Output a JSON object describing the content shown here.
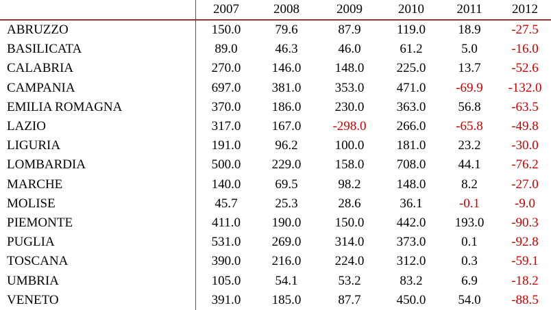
{
  "table": {
    "header": {
      "label": "",
      "years": [
        "2007",
        "2008",
        "2009",
        "2010",
        "2011",
        "2012"
      ]
    },
    "rows": [
      {
        "region": "ABRUZZO",
        "values": [
          "150.0",
          "79.6",
          "87.9",
          "119.0",
          "18.9",
          "-27.5"
        ]
      },
      {
        "region": "BASILICATA",
        "values": [
          "89.0",
          "46.3",
          "46.0",
          "61.2",
          "5.0",
          "-16.0"
        ]
      },
      {
        "region": "CALABRIA",
        "values": [
          "270.0",
          "146.0",
          "148.0",
          "225.0",
          "13.7",
          "-52.6"
        ]
      },
      {
        "region": "CAMPANIA",
        "values": [
          "697.0",
          "381.0",
          "353.0",
          "471.0",
          "-69.9",
          "-132.0"
        ]
      },
      {
        "region": "EMILIA ROMAGNA",
        "values": [
          "370.0",
          "186.0",
          "230.0",
          "363.0",
          "56.8",
          "-63.5"
        ]
      },
      {
        "region": "LAZIO",
        "values": [
          "317.0",
          "167.0",
          "-298.0",
          "266.0",
          "-65.8",
          "-49.8"
        ]
      },
      {
        "region": "LIGURIA",
        "values": [
          "191.0",
          "96.2",
          "100.0",
          "181.0",
          "23.2",
          "-30.0"
        ]
      },
      {
        "region": "LOMBARDIA",
        "values": [
          "500.0",
          "229.0",
          "158.0",
          "708.0",
          "44.1",
          "-76.2"
        ]
      },
      {
        "region": "MARCHE",
        "values": [
          "140.0",
          "69.5",
          "98.2",
          "148.0",
          "8.2",
          "-27.0"
        ]
      },
      {
        "region": "MOLISE",
        "values": [
          "45.7",
          "25.3",
          "28.6",
          "36.1",
          "-0.1",
          "-9.0"
        ]
      },
      {
        "region": "PIEMONTE",
        "values": [
          "411.0",
          "190.0",
          "150.0",
          "442.0",
          "193.0",
          "-90.3"
        ]
      },
      {
        "region": "PUGLIA",
        "values": [
          "531.0",
          "269.0",
          "314.0",
          "373.0",
          "0.1",
          "-92.8"
        ]
      },
      {
        "region": "TOSCANA",
        "values": [
          "390.0",
          "216.0",
          "224.0",
          "312.0",
          "0.3",
          "-59.1"
        ]
      },
      {
        "region": "UMBRIA",
        "values": [
          "105.0",
          "54.1",
          "53.2",
          "83.2",
          "6.9",
          "-18.2"
        ]
      },
      {
        "region": "VENETO",
        "values": [
          "391.0",
          "185.0",
          "87.7",
          "450.0",
          "54.0",
          "-88.5"
        ]
      }
    ]
  },
  "colors": {
    "negative": "#cc0000",
    "rule": "#8b3a3a",
    "text": "#000000"
  }
}
